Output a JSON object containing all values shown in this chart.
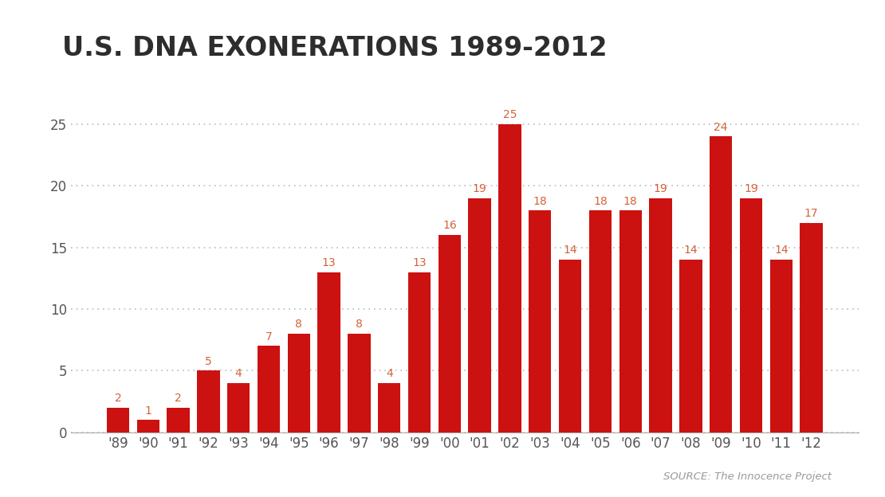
{
  "title": "U.S. DNA EXONERATIONS 1989-2012",
  "categories": [
    "'89",
    "'90",
    "'91",
    "'92",
    "'93",
    "'94",
    "'95",
    "'96",
    "'97",
    "'98",
    "'99",
    "'00",
    "'01",
    "'02",
    "'03",
    "'04",
    "'05",
    "'06",
    "'07",
    "'08",
    "'09",
    "'10",
    "'11",
    "'12"
  ],
  "values": [
    2,
    1,
    2,
    5,
    4,
    7,
    8,
    13,
    8,
    4,
    13,
    16,
    19,
    25,
    18,
    14,
    18,
    18,
    19,
    14,
    24,
    19,
    14,
    17
  ],
  "bar_color": "#cc1111",
  "label_color": "#d4623a",
  "title_color": "#2d2d2d",
  "axis_label_color": "#555555",
  "grid_color": "#bbbbbb",
  "background_color": "#ffffff",
  "source_text": "SOURCE: The Innocence Project",
  "source_color": "#999999",
  "ylim": [
    0,
    27
  ],
  "yticks": [
    0,
    5,
    10,
    15,
    20,
    25
  ],
  "title_fontsize": 24,
  "bar_label_fontsize": 10,
  "tick_fontsize": 12,
  "source_fontsize": 9.5,
  "bar_width": 0.75
}
